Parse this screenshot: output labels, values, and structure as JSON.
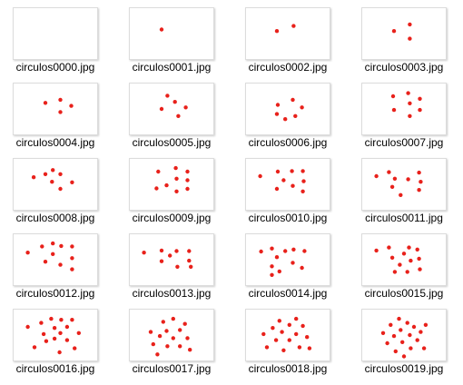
{
  "colors": {
    "dot": "#e8211b",
    "thumb_border": "#dcdcdc",
    "label_text": "#000000"
  },
  "files": [
    {
      "name": "circulos0000.jpg",
      "dots": []
    },
    {
      "name": "circulos0001.jpg",
      "dots": [
        [
          0.38,
          0.42
        ]
      ]
    },
    {
      "name": "circulos0002.jpg",
      "dots": [
        [
          0.37,
          0.45
        ],
        [
          0.57,
          0.35
        ]
      ]
    },
    {
      "name": "circulos0003.jpg",
      "dots": [
        [
          0.38,
          0.45
        ],
        [
          0.57,
          0.32
        ],
        [
          0.57,
          0.6
        ]
      ]
    },
    {
      "name": "circulos0004.jpg",
      "dots": [
        [
          0.38,
          0.38
        ],
        [
          0.56,
          0.32
        ],
        [
          0.56,
          0.56
        ],
        [
          0.69,
          0.44
        ]
      ]
    },
    {
      "name": "circulos0005.jpg",
      "dots": [
        [
          0.38,
          0.5
        ],
        [
          0.45,
          0.24
        ],
        [
          0.54,
          0.36
        ],
        [
          0.58,
          0.64
        ],
        [
          0.67,
          0.47
        ]
      ]
    },
    {
      "name": "circulos0006.jpg",
      "dots": [
        [
          0.38,
          0.42
        ],
        [
          0.37,
          0.6
        ],
        [
          0.47,
          0.7
        ],
        [
          0.56,
          0.32
        ],
        [
          0.59,
          0.64
        ],
        [
          0.67,
          0.47
        ]
      ]
    },
    {
      "name": "circulos0007.jpg",
      "dots": [
        [
          0.37,
          0.25
        ],
        [
          0.38,
          0.52
        ],
        [
          0.55,
          0.19
        ],
        [
          0.57,
          0.39
        ],
        [
          0.57,
          0.64
        ],
        [
          0.69,
          0.3
        ],
        [
          0.69,
          0.52
        ]
      ]
    },
    {
      "name": "circulos0008.jpg",
      "dots": [
        [
          0.24,
          0.36
        ],
        [
          0.38,
          0.3
        ],
        [
          0.47,
          0.22
        ],
        [
          0.46,
          0.45
        ],
        [
          0.56,
          0.3
        ],
        [
          0.56,
          0.59
        ],
        [
          0.7,
          0.46
        ]
      ]
    },
    {
      "name": "circulos0009.jpg",
      "dots": [
        [
          0.34,
          0.25
        ],
        [
          0.44,
          0.52
        ],
        [
          0.32,
          0.58
        ],
        [
          0.55,
          0.18
        ],
        [
          0.56,
          0.39
        ],
        [
          0.56,
          0.64
        ],
        [
          0.69,
          0.25
        ],
        [
          0.69,
          0.42
        ],
        [
          0.69,
          0.59
        ]
      ]
    },
    {
      "name": "circulos0010.jpg",
      "dots": [
        [
          0.17,
          0.34
        ],
        [
          0.38,
          0.25
        ],
        [
          0.45,
          0.42
        ],
        [
          0.37,
          0.59
        ],
        [
          0.55,
          0.24
        ],
        [
          0.56,
          0.53
        ],
        [
          0.68,
          0.24
        ],
        [
          0.69,
          0.44
        ],
        [
          0.68,
          0.64
        ]
      ]
    },
    {
      "name": "circulos0011.jpg",
      "dots": [
        [
          0.17,
          0.34
        ],
        [
          0.32,
          0.26
        ],
        [
          0.39,
          0.39
        ],
        [
          0.36,
          0.55
        ],
        [
          0.46,
          0.71
        ],
        [
          0.55,
          0.4
        ],
        [
          0.68,
          0.27
        ],
        [
          0.7,
          0.45
        ],
        [
          0.68,
          0.61
        ]
      ]
    },
    {
      "name": "circulos0012.jpg",
      "dots": [
        [
          0.17,
          0.36
        ],
        [
          0.34,
          0.24
        ],
        [
          0.38,
          0.54
        ],
        [
          0.47,
          0.18
        ],
        [
          0.47,
          0.39
        ],
        [
          0.57,
          0.23
        ],
        [
          0.56,
          0.6
        ],
        [
          0.7,
          0.24
        ],
        [
          0.7,
          0.47
        ],
        [
          0.7,
          0.69
        ]
      ]
    },
    {
      "name": "circulos0013.jpg",
      "dots": [
        [
          0.17,
          0.36
        ],
        [
          0.38,
          0.32
        ],
        [
          0.38,
          0.53
        ],
        [
          0.48,
          0.42
        ],
        [
          0.56,
          0.33
        ],
        [
          0.57,
          0.64
        ],
        [
          0.71,
          0.33
        ],
        [
          0.71,
          0.52
        ],
        [
          0.73,
          0.64
        ]
      ]
    },
    {
      "name": "circulos0014.jpg",
      "dots": [
        [
          0.18,
          0.34
        ],
        [
          0.31,
          0.28
        ],
        [
          0.37,
          0.45
        ],
        [
          0.31,
          0.63
        ],
        [
          0.31,
          0.8
        ],
        [
          0.4,
          0.73
        ],
        [
          0.47,
          0.33
        ],
        [
          0.57,
          0.3
        ],
        [
          0.56,
          0.56
        ],
        [
          0.7,
          0.33
        ],
        [
          0.67,
          0.66
        ]
      ]
    },
    {
      "name": "circulos0015.jpg",
      "dots": [
        [
          0.17,
          0.32
        ],
        [
          0.32,
          0.26
        ],
        [
          0.36,
          0.46
        ],
        [
          0.39,
          0.74
        ],
        [
          0.45,
          0.6
        ],
        [
          0.5,
          0.38
        ],
        [
          0.56,
          0.26
        ],
        [
          0.58,
          0.52
        ],
        [
          0.54,
          0.74
        ],
        [
          0.66,
          0.3
        ],
        [
          0.68,
          0.48
        ],
        [
          0.69,
          0.69
        ]
      ]
    },
    {
      "name": "circulos0016.jpg",
      "dots": [
        [
          0.17,
          0.34
        ],
        [
          0.25,
          0.74
        ],
        [
          0.33,
          0.26
        ],
        [
          0.36,
          0.48
        ],
        [
          0.39,
          0.62
        ],
        [
          0.45,
          0.18
        ],
        [
          0.49,
          0.36
        ],
        [
          0.49,
          0.57
        ],
        [
          0.55,
          0.84
        ],
        [
          0.57,
          0.2
        ],
        [
          0.56,
          0.46
        ],
        [
          0.64,
          0.34
        ],
        [
          0.64,
          0.6
        ],
        [
          0.7,
          0.2
        ],
        [
          0.73,
          0.76
        ],
        [
          0.78,
          0.46
        ]
      ]
    },
    {
      "name": "circulos0017.jpg",
      "dots": [
        [
          0.25,
          0.44
        ],
        [
          0.28,
          0.68
        ],
        [
          0.33,
          0.88
        ],
        [
          0.36,
          0.52
        ],
        [
          0.4,
          0.24
        ],
        [
          0.44,
          0.42
        ],
        [
          0.45,
          0.72
        ],
        [
          0.52,
          0.18
        ],
        [
          0.52,
          0.56
        ],
        [
          0.6,
          0.4
        ],
        [
          0.6,
          0.72
        ],
        [
          0.66,
          0.28
        ],
        [
          0.69,
          0.56
        ],
        [
          0.72,
          0.79
        ]
      ]
    },
    {
      "name": "circulos0018.jpg",
      "dots": [
        [
          0.21,
          0.48
        ],
        [
          0.25,
          0.74
        ],
        [
          0.32,
          0.36
        ],
        [
          0.36,
          0.6
        ],
        [
          0.4,
          0.22
        ],
        [
          0.43,
          0.44
        ],
        [
          0.45,
          0.8
        ],
        [
          0.52,
          0.3
        ],
        [
          0.52,
          0.6
        ],
        [
          0.6,
          0.18
        ],
        [
          0.6,
          0.48
        ],
        [
          0.64,
          0.74
        ],
        [
          0.68,
          0.32
        ],
        [
          0.73,
          0.54
        ],
        [
          0.76,
          0.76
        ]
      ]
    },
    {
      "name": "circulos0019.jpg",
      "dots": [
        [
          0.25,
          0.46
        ],
        [
          0.3,
          0.66
        ],
        [
          0.34,
          0.3
        ],
        [
          0.38,
          0.52
        ],
        [
          0.4,
          0.82
        ],
        [
          0.44,
          0.18
        ],
        [
          0.46,
          0.4
        ],
        [
          0.48,
          0.64
        ],
        [
          0.5,
          0.92
        ],
        [
          0.54,
          0.26
        ],
        [
          0.57,
          0.5
        ],
        [
          0.58,
          0.76
        ],
        [
          0.62,
          0.34
        ],
        [
          0.66,
          0.6
        ],
        [
          0.7,
          0.44
        ],
        [
          0.74,
          0.76
        ],
        [
          0.76,
          0.3
        ]
      ]
    }
  ]
}
